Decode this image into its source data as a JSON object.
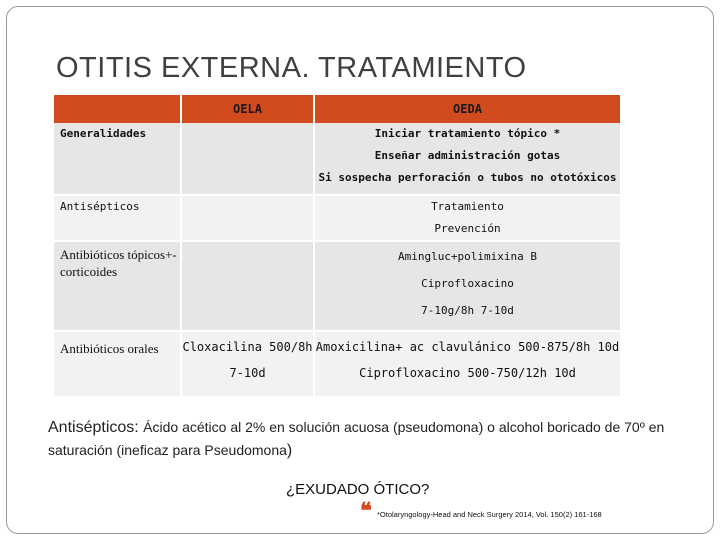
{
  "title": "OTITIS EXTERNA. TRATAMIENTO",
  "table": {
    "headers": [
      "",
      "OELA",
      "OEDA"
    ],
    "rows": [
      {
        "label": "Generalidades",
        "oela": [],
        "oeda": [
          "Iniciar tratamiento tópico *",
          "Enseñar administración gotas",
          "Si sospecha perforación o tubos no ototóxicos"
        ]
      },
      {
        "label": "Antisépticos",
        "oela": [],
        "oeda": [
          "Tratamiento",
          "Prevención"
        ]
      },
      {
        "label": "Antibióticos tópicos+- corticoides",
        "oela": [],
        "oeda": [
          "Amingluc+polimixina B",
          "Ciprofloxacino",
          "7-10g/8h 7-10d"
        ]
      },
      {
        "label": "Antibióticos orales",
        "oela": [
          "Cloxacilina 500/8h",
          "7-10d"
        ],
        "oeda": [
          "Amoxicilina+ ac clavulánico 500-875/8h 10d",
          "Ciprofloxacino  500-750/12h 10d"
        ]
      }
    ]
  },
  "note": {
    "lead": "Antisépticos: ",
    "body": "Ácido acético al 2% en solución acuosa (pseudomona) o alcohol  boricado de 70º en saturación (ineficaz  para Pseudomona",
    "tail": ")"
  },
  "question": "¿EXUDADO ÓTICO?",
  "quote_glyph": "❝",
  "reference": "*Otolaryngology-Head and Neck Surgery 2014, Vol. 150(2) 161-168",
  "colors": {
    "header": "#d24b1e",
    "row_light": "#f2f2f2",
    "row_dark": "#e6e6e6"
  }
}
